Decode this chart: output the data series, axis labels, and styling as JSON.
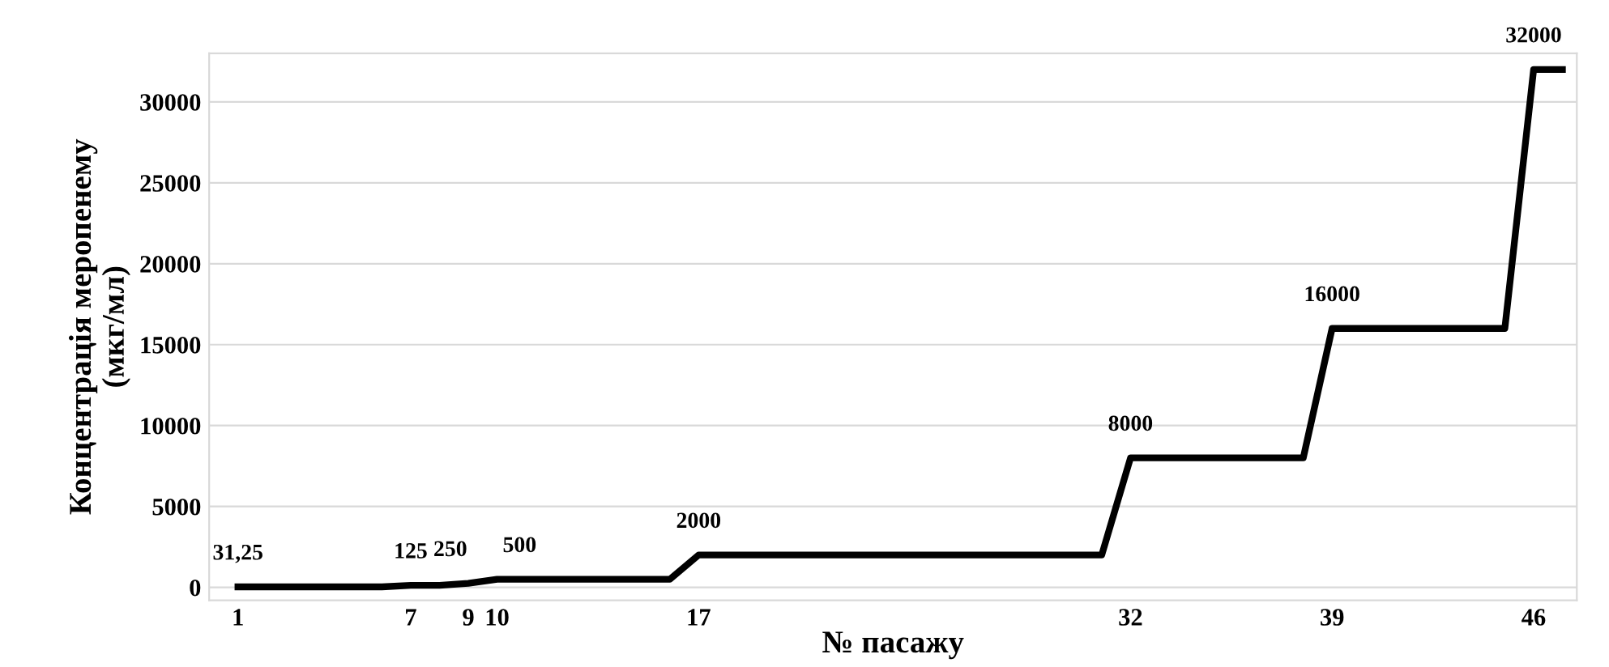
{
  "chart_data": {
    "type": "line",
    "xlabel": "№ пасажу",
    "ylabel": "Концентрація меропенему\n(мкг/мл)",
    "x": [
      1,
      2,
      3,
      4,
      5,
      6,
      7,
      8,
      9,
      10,
      11,
      12,
      13,
      14,
      15,
      16,
      17,
      18,
      19,
      20,
      21,
      22,
      23,
      24,
      25,
      26,
      27,
      28,
      29,
      30,
      31,
      32,
      33,
      34,
      35,
      36,
      37,
      38,
      39,
      40,
      41,
      42,
      43,
      44,
      45,
      46,
      47
    ],
    "series": [
      {
        "color": "#000000",
        "values": [
          31.25,
          31.25,
          31.25,
          31.25,
          31.25,
          31.25,
          125,
          125,
          250,
          500,
          500,
          500,
          500,
          500,
          500,
          500,
          2000,
          2000,
          2000,
          2000,
          2000,
          2000,
          2000,
          2000,
          2000,
          2000,
          2000,
          2000,
          2000,
          2000,
          2000,
          8000,
          8000,
          8000,
          8000,
          8000,
          8000,
          8000,
          16000,
          16000,
          16000,
          16000,
          16000,
          16000,
          16000,
          32000,
          32000
        ],
        "value_labels": [
          "31,25",
          null,
          null,
          null,
          null,
          null,
          "125",
          null,
          "250",
          "500",
          null,
          null,
          null,
          null,
          null,
          null,
          "2000",
          null,
          null,
          null,
          null,
          null,
          null,
          null,
          null,
          null,
          null,
          null,
          null,
          null,
          null,
          "8000",
          null,
          null,
          null,
          null,
          null,
          null,
          "16000",
          null,
          null,
          null,
          null,
          null,
          null,
          "32000",
          null
        ]
      }
    ],
    "xlim": [
      0,
      47.5
    ],
    "xticks": [
      1,
      7,
      9,
      10,
      17,
      32,
      39,
      46
    ],
    "ylim": [
      -800,
      33000
    ],
    "yticks": [
      0,
      5000,
      10000,
      15000,
      20000,
      25000,
      30000
    ],
    "grid": "y",
    "marker": "none",
    "line_style": "solid"
  }
}
